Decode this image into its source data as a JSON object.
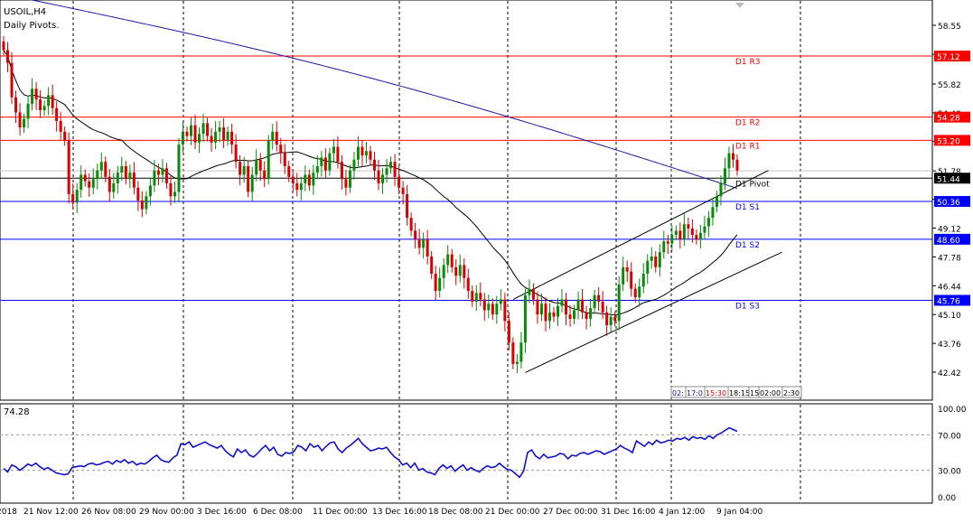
{
  "chart_data": [
    {
      "type": "candlestick",
      "symbol_timeframe": "USOIL,H4",
      "indicator_label": "Daily Pivots.",
      "ylim": [
        41.6,
        59.3
      ],
      "y_ticks": [
        "58.55",
        "57.20",
        "55.82",
        "54.48",
        "53.14",
        "51.78",
        "50.46",
        "49.12",
        "47.78",
        "46.44",
        "45.10",
        "43.76",
        "42.42"
      ],
      "price_badges": [
        {
          "value": "57.12",
          "color": "#ff0000"
        },
        {
          "value": "54.28",
          "color": "#ff0000"
        },
        {
          "value": "53.20",
          "color": "#ff0000"
        },
        {
          "value": "51.44",
          "color": "#000000"
        },
        {
          "value": "50.36",
          "color": "#0000ff"
        },
        {
          "value": "48.60",
          "color": "#0000ff"
        },
        {
          "value": "45.76",
          "color": "#0000ff"
        }
      ],
      "pivot_levels": [
        {
          "label": "D1  R3",
          "value": 57.12,
          "color": "#ff0000"
        },
        {
          "label": "D1  R2",
          "value": 54.28,
          "color": "#ff0000"
        },
        {
          "label": "D1  R1",
          "value": 53.2,
          "color": "#ff0000"
        },
        {
          "label": "D1 Pivot",
          "value": 51.44,
          "color": "#000000"
        },
        {
          "label": "D1  S1",
          "value": 50.36,
          "color": "#0000ff"
        },
        {
          "label": "D1  S2",
          "value": 48.6,
          "color": "#0000ff"
        },
        {
          "label": "D1  S3",
          "value": 45.76,
          "color": "#0000ff"
        }
      ],
      "current_price": 51.78,
      "series": [
        {
          "name": "close",
          "values": [
            57.4,
            56.8,
            55.2,
            54.5,
            53.8,
            54.2,
            54.9,
            55.6,
            55.1,
            54.6,
            54.8,
            55.3,
            54.7,
            54.1,
            53.6,
            53.2,
            50.7,
            50.3,
            50.9,
            51.6,
            51.3,
            51.0,
            51.4,
            51.8,
            52.2,
            51.5,
            50.8,
            51.2,
            51.7,
            52.0,
            51.4,
            51.7,
            51.0,
            50.4,
            50.0,
            50.6,
            51.1,
            51.8,
            51.6,
            51.9,
            51.2,
            50.6,
            50.8,
            53.0,
            53.6,
            53.4,
            53.9,
            53.1,
            53.5,
            54.0,
            53.4,
            53.1,
            53.6,
            53.8,
            53.2,
            53.6,
            53.0,
            52.2,
            51.6,
            52.0,
            50.8,
            51.6,
            52.3,
            51.8,
            51.4,
            53.2,
            53.6,
            53.0,
            52.6,
            52.0,
            51.5,
            51.2,
            50.9,
            51.2,
            51.6,
            51.1,
            51.7,
            52.0,
            52.4,
            51.8,
            52.6,
            52.9,
            52.2,
            51.4,
            51.0,
            51.8,
            52.3,
            52.9,
            52.5,
            52.7,
            52.3,
            51.8,
            51.2,
            51.6,
            51.9,
            52.2,
            51.5,
            51.0,
            50.7,
            49.6,
            49.0,
            48.6,
            48.2,
            48.6,
            47.8,
            47.0,
            46.2,
            46.8,
            47.4,
            47.9,
            47.3,
            46.9,
            47.4,
            46.8,
            46.2,
            45.7,
            46.1,
            45.8,
            45.3,
            45.6,
            45.1,
            45.6,
            45.8,
            44.8,
            43.8,
            42.8,
            42.9,
            43.8,
            46.0,
            46.3,
            45.8,
            45.1,
            45.6,
            44.8,
            45.2,
            45.0,
            45.5,
            45.8,
            45.1,
            44.9,
            45.3,
            45.8,
            45.2,
            44.9,
            45.4,
            46.0,
            45.7,
            45.2,
            44.6,
            45.0,
            44.8,
            46.5,
            47.3,
            47.1,
            46.3,
            45.9,
            46.4,
            47.0,
            47.6,
            47.8,
            47.3,
            48.0,
            48.5,
            48.4,
            48.8,
            49.0,
            48.6,
            49.3,
            49.1,
            48.8,
            48.6,
            48.9,
            49.2,
            49.6,
            50.1,
            50.6,
            51.2,
            51.9,
            52.6,
            52.3,
            51.8
          ]
        }
      ],
      "rsi_subchart": {
        "type": "line",
        "label": "74.28",
        "ylim": [
          0,
          100
        ],
        "y_ticks": [
          "100.00",
          "70.00",
          "30.00",
          "0.00"
        ],
        "levels": [
          70,
          30
        ],
        "values": [
          32,
          28,
          36,
          34,
          30,
          33,
          37,
          35,
          38,
          34,
          31,
          33,
          30,
          27,
          26,
          25,
          26,
          33,
          34,
          35,
          34,
          37,
          38,
          36,
          37,
          39,
          40,
          37,
          41,
          39,
          42,
          38,
          40,
          36,
          38,
          37,
          40,
          44,
          47,
          42,
          40,
          39,
          44,
          47,
          60,
          59,
          62,
          56,
          58,
          60,
          62,
          59,
          57,
          55,
          58,
          52,
          48,
          45,
          54,
          50,
          53,
          47,
          45,
          49,
          54,
          58,
          52,
          56,
          48,
          46,
          50,
          49,
          51,
          58,
          56,
          52,
          60,
          56,
          58,
          52,
          57,
          61,
          62,
          54,
          50,
          55,
          58,
          62,
          66,
          60,
          56,
          52,
          53,
          55,
          54,
          56,
          50,
          45,
          42,
          36,
          38,
          33,
          38,
          30,
          32,
          28,
          27,
          25,
          32,
          36,
          32,
          35,
          29,
          33,
          36,
          30,
          33,
          30,
          28,
          32,
          35,
          33,
          34,
          38,
          34,
          31,
          30,
          26,
          22,
          29,
          50,
          53,
          46,
          43,
          48,
          44,
          45,
          46,
          49,
          48,
          43,
          47,
          46,
          49,
          50,
          48,
          50,
          52,
          51,
          48,
          50,
          52,
          54,
          58,
          55,
          53,
          50,
          63,
          60,
          57,
          62,
          59,
          64,
          61,
          62,
          64,
          63,
          66,
          65,
          67,
          64,
          68,
          66,
          67,
          65,
          69,
          66,
          70,
          72,
          75,
          78,
          76,
          74
        ]
      }
    }
  ],
  "x_axis": {
    "labels": [
      "2018",
      "21 Nov 12:00",
      "26 Nov 08:00",
      "29 Nov 00:00",
      "3 Dec 16:00",
      "6 Dec 08:00",
      "11 Dec 00:00",
      "13 Dec 16:00",
      "18 Dec 08:00",
      "21 Dec 00:00",
      "27 Dec 00:00",
      "31 Dec 16:00",
      "4 Jan 12:00",
      "9 Jan 04:00"
    ]
  },
  "time_readout": [
    "02:",
    "17:0",
    "15:30",
    "18:15",
    "15",
    "02:00",
    "2:30"
  ]
}
